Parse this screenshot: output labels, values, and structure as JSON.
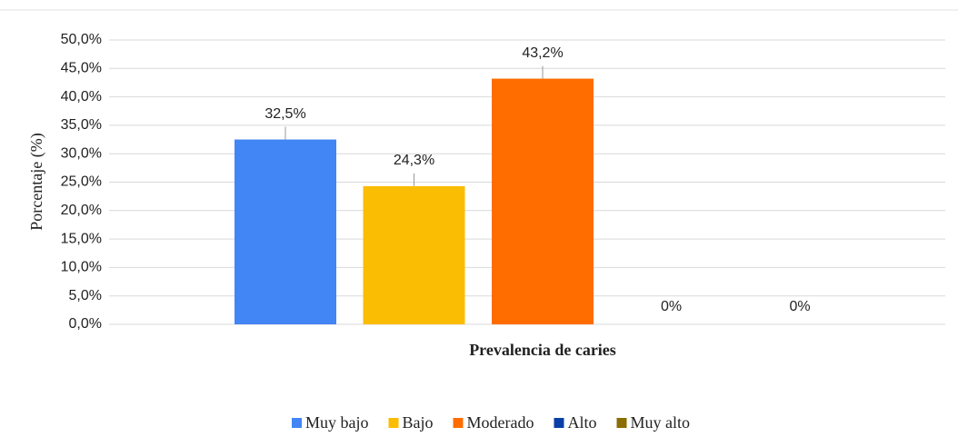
{
  "chart_data": {
    "type": "bar",
    "categories": [
      "Prevalencia de caries"
    ],
    "y_label": "Porcentaje (%)",
    "series": [
      {
        "name": "Muy bajo",
        "color": "#4285f4",
        "values": [
          32.5
        ],
        "value_labels": [
          "32,5%"
        ]
      },
      {
        "name": "Bajo",
        "color": "#fbbc04",
        "values": [
          24.3
        ],
        "value_labels": [
          "24,3%"
        ]
      },
      {
        "name": "Moderado",
        "color": "#ff6d01",
        "values": [
          43.2
        ],
        "value_labels": [
          "43,2%"
        ]
      },
      {
        "name": "Alto",
        "color": "#0b3fa8",
        "values": [
          0
        ],
        "value_labels": [
          "0%"
        ]
      },
      {
        "name": "Muy alto",
        "color": "#8b6d00",
        "values": [
          0
        ],
        "value_labels": [
          "0%"
        ]
      }
    ],
    "ylim": [
      0,
      50
    ],
    "yticks": [
      {
        "value": 0,
        "label": "0,0%"
      },
      {
        "value": 5,
        "label": "5,0%"
      },
      {
        "value": 10,
        "label": "10,0%"
      },
      {
        "value": 15,
        "label": "15,0%"
      },
      {
        "value": 20,
        "label": "20,0%"
      },
      {
        "value": 25,
        "label": "25,0%"
      },
      {
        "value": 30,
        "label": "30,0%"
      },
      {
        "value": 35,
        "label": "35,0%"
      },
      {
        "value": 40,
        "label": "40,0%"
      },
      {
        "value": 45,
        "label": "45,0%"
      },
      {
        "value": 50,
        "label": "50,0%"
      }
    ],
    "grid": true,
    "legend": "bottom"
  }
}
